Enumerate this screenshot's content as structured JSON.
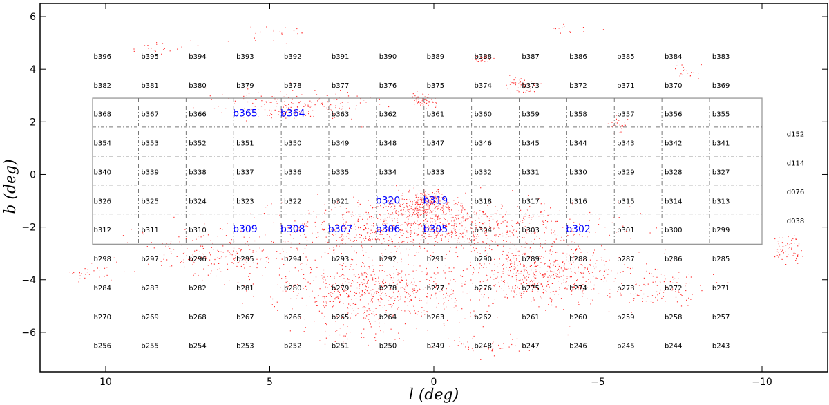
{
  "chart_data": {
    "type": "scatter",
    "xlabel": "l (deg)",
    "ylabel": "b (deg)",
    "xlim": [
      12,
      -12
    ],
    "ylim": [
      -7.5,
      6.5
    ],
    "xticks": [
      10,
      5,
      0,
      -5,
      -10
    ],
    "xtick_labels": [
      "10",
      "5",
      "0",
      "−5",
      "−10"
    ],
    "yticks": [
      -6,
      -4,
      -2,
      0,
      2,
      4,
      6
    ],
    "ytick_labels": [
      "−6",
      "−4",
      "−2",
      "0",
      "2",
      "4",
      "6"
    ],
    "grid": false,
    "colors": {
      "points": "#ff0000",
      "highlight": "#0000ff",
      "frame": "#999999",
      "text": "#000000"
    },
    "tile_columns_l": [
      10.1,
      8.65,
      7.2,
      5.75,
      4.3,
      2.85,
      1.4,
      -0.05,
      -1.5,
      -2.95,
      -4.4,
      -5.85,
      -7.3,
      -8.75
    ],
    "tile_rows": [
      {
        "b": 4.4,
        "labels": [
          "b396",
          "b395",
          "b394",
          "b393",
          "b392",
          "b391",
          "b390",
          "b389",
          "b388",
          "b387",
          "b386",
          "b385",
          "b384",
          "b383"
        ]
      },
      {
        "b": 3.3,
        "labels": [
          "b382",
          "b381",
          "b380",
          "b379",
          "b378",
          "b377",
          "b376",
          "b375",
          "b374",
          "b373",
          "b372",
          "b371",
          "b370",
          "b369"
        ]
      },
      {
        "b": 2.2,
        "labels": [
          "b368",
          "b367",
          "b366",
          "b365",
          "b364",
          "b363",
          "b362",
          "b361",
          "b360",
          "b359",
          "b358",
          "b357",
          "b356",
          "b355"
        ]
      },
      {
        "b": 1.1,
        "labels": [
          "b354",
          "b353",
          "b352",
          "b351",
          "b350",
          "b349",
          "b348",
          "b347",
          "b346",
          "b345",
          "b344",
          "b343",
          "b342",
          "b341"
        ]
      },
      {
        "b": 0.0,
        "labels": [
          "b340",
          "b339",
          "b338",
          "b337",
          "b336",
          "b335",
          "b334",
          "b333",
          "b332",
          "b331",
          "b330",
          "b329",
          "b328",
          "b327"
        ]
      },
      {
        "b": -1.1,
        "labels": [
          "b326",
          "b325",
          "b324",
          "b323",
          "b322",
          "b321",
          "b320",
          "b319",
          "b318",
          "b317",
          "b316",
          "b315",
          "b314",
          "b313"
        ]
      },
      {
        "b": -2.2,
        "labels": [
          "b312",
          "b311",
          "b310",
          "b309",
          "b308",
          "b307",
          "b306",
          "b305",
          "b304",
          "b303",
          "b302",
          "b301",
          "b300",
          "b299"
        ]
      },
      {
        "b": -3.3,
        "labels": [
          "b298",
          "b297",
          "b296",
          "b295",
          "b294",
          "b293",
          "b292",
          "b291",
          "b290",
          "b289",
          "b288",
          "b287",
          "b286",
          "b285"
        ]
      },
      {
        "b": -4.4,
        "labels": [
          "b284",
          "b283",
          "b282",
          "b281",
          "b280",
          "b279",
          "b278",
          "b277",
          "b276",
          "b275",
          "b274",
          "b273",
          "b272",
          "b271"
        ]
      },
      {
        "b": -5.5,
        "labels": [
          "b270",
          "b269",
          "b268",
          "b267",
          "b266",
          "b265",
          "b264",
          "b263",
          "b262",
          "b261",
          "b260",
          "b259",
          "b258",
          "b257"
        ]
      },
      {
        "b": -6.6,
        "labels": [
          "b256",
          "b255",
          "b254",
          "b253",
          "b252",
          "b251",
          "b250",
          "b249",
          "b248",
          "b247",
          "b246",
          "b245",
          "b244",
          "b243"
        ]
      }
    ],
    "highlighted_tiles": [
      "b365",
      "b364",
      "b320",
      "b319",
      "b309",
      "b308",
      "b307",
      "b306",
      "b305",
      "b302"
    ],
    "disk_strips": [
      {
        "label": "d152",
        "b": 1.55
      },
      {
        "label": "d114",
        "b": 0.45
      },
      {
        "label": "d076",
        "b": -0.65
      },
      {
        "label": "d038",
        "b": -1.75
      }
    ],
    "survey_box": {
      "l_min": -10,
      "l_max": 10.4,
      "b_min": -2.65,
      "b_max": 2.9
    },
    "column_dividers_l": [
      9.0,
      7.55,
      6.1,
      4.65,
      3.2,
      1.75,
      0.3,
      -1.15,
      -2.6,
      -4.05,
      -5.5,
      -6.95,
      -8.4
    ],
    "row_dividers_b": [
      1.8,
      0.7,
      -0.4,
      -1.5
    ],
    "point_clusters": [
      {
        "l": 0.2,
        "b": -2.0,
        "sl": 4.8,
        "sb": 1.0,
        "n": 1000
      },
      {
        "l": 1.8,
        "b": -4.4,
        "sl": 3.0,
        "sb": 1.2,
        "n": 650
      },
      {
        "l": -3.5,
        "b": -3.8,
        "sl": 2.6,
        "sb": 1.2,
        "n": 550
      },
      {
        "l": 0.3,
        "b": -1.1,
        "sl": 0.9,
        "sb": 0.5,
        "n": 250
      },
      {
        "l": 6.5,
        "b": -3.0,
        "sl": 2.5,
        "sb": 0.9,
        "n": 220
      },
      {
        "l": 4.2,
        "b": 2.7,
        "sl": 2.4,
        "sb": 0.6,
        "n": 180
      },
      {
        "l": -7.0,
        "b": -4.3,
        "sl": 1.4,
        "sb": 0.8,
        "n": 90
      },
      {
        "l": 0.3,
        "b": 2.8,
        "sl": 0.35,
        "sb": 0.25,
        "n": 60
      },
      {
        "l": -2.7,
        "b": 3.4,
        "sl": 0.4,
        "sb": 0.35,
        "n": 50
      },
      {
        "l": -1.5,
        "b": 4.4,
        "sl": 0.3,
        "sb": 0.15,
        "n": 30
      },
      {
        "l": -5.6,
        "b": 1.9,
        "sl": 0.3,
        "sb": 0.3,
        "n": 25
      },
      {
        "l": -10.8,
        "b": -2.8,
        "sl": 0.5,
        "sb": 0.5,
        "n": 60
      },
      {
        "l": 10.5,
        "b": -3.7,
        "sl": 0.7,
        "sb": 0.3,
        "n": 25
      },
      {
        "l": 8.2,
        "b": 4.8,
        "sl": 0.8,
        "sb": 0.3,
        "n": 20
      },
      {
        "l": 5.0,
        "b": 5.4,
        "sl": 1.2,
        "sb": 0.3,
        "n": 20
      },
      {
        "l": -1.4,
        "b": -6.5,
        "sl": 1.4,
        "sb": 0.4,
        "n": 40
      },
      {
        "l": 2.5,
        "b": -6.0,
        "sl": 2.0,
        "sb": 0.5,
        "n": 40
      },
      {
        "l": -4.2,
        "b": 5.5,
        "sl": 0.8,
        "sb": 0.2,
        "n": 12
      },
      {
        "l": -7.7,
        "b": 3.9,
        "sl": 0.5,
        "sb": 0.3,
        "n": 20
      }
    ]
  }
}
